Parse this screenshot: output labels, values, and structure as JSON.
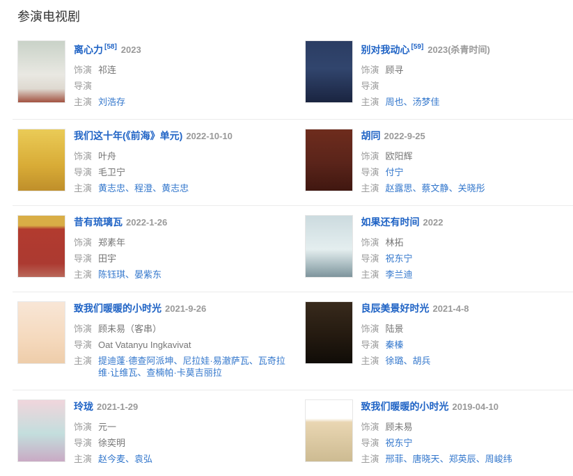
{
  "section": {
    "title": "参演电视剧"
  },
  "labels": {
    "role": "饰演",
    "director": "导演",
    "starring": "主演",
    "separator": "、"
  },
  "colors": {
    "title_blue": "#1f63c5",
    "link_blue": "#3377cc",
    "label_gray": "#9c9c9c",
    "text_gray": "#757575",
    "year_gray": "#999999",
    "heading": "#333333",
    "divider": "#ebebeb"
  },
  "entries": [
    {
      "title": "离心力",
      "ref": "[58]",
      "year": "2023",
      "role": "祁连",
      "director": {
        "name": "",
        "is_link": false
      },
      "starring": [
        "刘浩存"
      ],
      "poster_stops": [
        "#c9d2c8 0%",
        "#e9e8e2 55%",
        "#ded9d0 78%",
        "#a25240 100%"
      ]
    },
    {
      "title": "别对我动心",
      "ref": "[59]",
      "year": "2023(杀青时间)",
      "role": "顾寻",
      "director": {
        "name": "",
        "is_link": false
      },
      "starring": [
        "周也",
        "汤梦佳"
      ],
      "poster_stops": [
        "#2b3d63 0%",
        "#31456d 45%",
        "#1a2440 100%"
      ]
    },
    {
      "title": "我们这十年(《前海》单元)",
      "ref": "",
      "year": "2022-10-10",
      "role": "叶舟",
      "director": {
        "name": "毛卫宁",
        "is_link": false
      },
      "starring": [
        "黄志忠",
        "程澄",
        "黄志忠"
      ],
      "poster_stops": [
        "#eacb57 0%",
        "#d8ab36 60%",
        "#bf8f2b 100%"
      ]
    },
    {
      "title": "胡同",
      "ref": "",
      "year": "2022-9-25",
      "role": "欧阳辉",
      "director": {
        "name": "付宁",
        "is_link": true
      },
      "starring": [
        "赵露思",
        "蔡文静",
        "关晓彤"
      ],
      "poster_stops": [
        "#6e2c1d 0%",
        "#5a241a 55%",
        "#401710 100%"
      ]
    },
    {
      "title": "昔有琉璃瓦",
      "ref": "",
      "year": "2022-1-26",
      "role": "郑素年",
      "director": {
        "name": "田宇",
        "is_link": false
      },
      "starring": [
        "陈钰琪",
        "晏紫东"
      ],
      "poster_stops": [
        "#d9ae46 0%",
        "#d9ae46 16%",
        "#b23b2f 22%",
        "#ac3a31 78%",
        "#b9685a 100%"
      ]
    },
    {
      "title": "如果还有时间",
      "ref": "",
      "year": "2022",
      "role": "林拓",
      "director": {
        "name": "祝东宁",
        "is_link": true
      },
      "starring": [
        "李兰迪"
      ],
      "poster_stops": [
        "#ccdbdf 0%",
        "#e4eeef 55%",
        "#9fb3b8 85%",
        "#7e949c 100%"
      ]
    },
    {
      "title": "致我们暖暖的小时光",
      "ref": "",
      "year": "2021-9-26",
      "role": "顾未易（客串）",
      "director": {
        "name": "Oat Vatanyu Ingkavivat",
        "is_link": false
      },
      "starring": [
        "提迪蓬·德查阿派坤",
        "尼拉娃·易澈萨瓦",
        "瓦奇拉维·让维瓦",
        "查楠帕·卡莫吉丽拉"
      ],
      "poster_stops": [
        "#f8e6d6 0%",
        "#f5d9bd 60%",
        "#eecdaa 100%"
      ]
    },
    {
      "title": "良辰美景好时光",
      "ref": "",
      "year": "2021-4-8",
      "role": "陆景",
      "director": {
        "name": "秦榛",
        "is_link": true
      },
      "starring": [
        "徐璐",
        "胡兵"
      ],
      "poster_stops": [
        "#382a1c 0%",
        "#241a10 55%",
        "#100c07 100%"
      ]
    },
    {
      "title": "玲珑",
      "ref": "",
      "year": "2021-1-29",
      "role": "元一",
      "director": {
        "name": "徐奕明",
        "is_link": false
      },
      "starring": [
        "赵今麦",
        "袁弘"
      ],
      "poster_stops": [
        "#f0d5dc 0%",
        "#c3dedd 55%",
        "#c9aac4 100%"
      ]
    },
    {
      "title": "致我们暖暖的小时光",
      "ref": "",
      "year": "2019-04-10",
      "role": "顾未易",
      "director": {
        "name": "祝东宁",
        "is_link": true
      },
      "starring": [
        "邢菲",
        "唐晓天",
        "郑英辰",
        "周峻纬"
      ],
      "poster_stops": [
        "#ffffff 0%",
        "#ffffff 30%",
        "#e9d6b2 36%",
        "#cdbb92 100%"
      ]
    }
  ]
}
